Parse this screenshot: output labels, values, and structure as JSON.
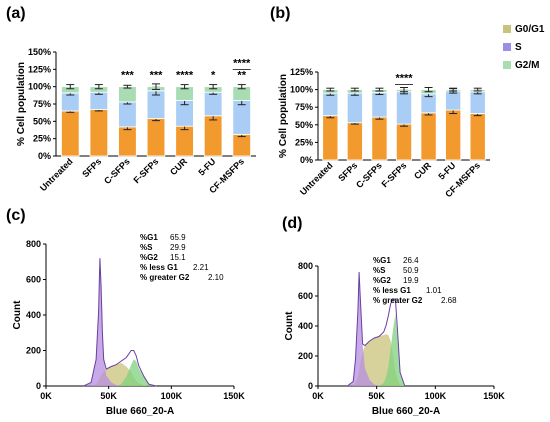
{
  "colors": {
    "g0g1": "#f39a2e",
    "s": "#a9cdf5",
    "g2m": "#a9dcb3",
    "bar_frame": "#ffffff",
    "hist_g1": "#b58ee0",
    "hist_s": "#c9c27a",
    "hist_g2": "#7fd17f",
    "legend_g0g1": "#c9c27a",
    "legend_s": "#9b8ee6",
    "legend_g2m": "#a9dcb3"
  },
  "legend": [
    "G0/G1",
    "S",
    "G2/M"
  ],
  "chart_data": [
    {
      "panel": "(a)",
      "type": "bar",
      "stacked": true,
      "categories": [
        "Untreated",
        "SFPs",
        "C-SFPs",
        "F-SFPs",
        "CUR",
        "5-FU",
        "CF-MSFPs"
      ],
      "ylabel": "% Cell population",
      "xlabel": "",
      "ylim": [
        0,
        150
      ],
      "yticks": [
        "0%",
        "25%",
        "50%",
        "75%",
        "100%",
        "125%",
        "150%"
      ],
      "series": [
        {
          "name": "G0/G1",
          "values": [
            65,
            67,
            42,
            54,
            43,
            58,
            31
          ],
          "errors": [
            2,
            2,
            4,
            3,
            5,
            6,
            3
          ]
        },
        {
          "name": "S",
          "values": [
            26,
            25,
            36,
            40,
            37,
            34,
            49
          ],
          "errors": [
            3,
            3,
            3,
            6,
            6,
            3,
            6
          ]
        },
        {
          "name": "G2/M",
          "values": [
            9,
            8,
            22,
            6,
            20,
            8,
            20
          ],
          "errors": [
            3,
            3,
            2,
            4,
            3,
            3,
            3
          ]
        }
      ],
      "significance": [
        {
          "category": "C-SFPs",
          "label": "***"
        },
        {
          "category": "F-SFPs",
          "label": "***"
        },
        {
          "category": "CUR",
          "label": "****"
        },
        {
          "category": "5-FU",
          "label": "*"
        },
        {
          "category": "CF-MSFPs",
          "label": "****"
        },
        {
          "category": "CF-MSFPs",
          "label": "**"
        }
      ]
    },
    {
      "panel": "(b)",
      "type": "bar",
      "stacked": true,
      "categories": [
        "Untreated",
        "SFPs",
        "C-SFPs",
        "F-SFPs",
        "CUR",
        "5-FU",
        "CF-MSFPs"
      ],
      "ylabel": "% Cell population",
      "xlabel": "",
      "ylim": [
        0,
        125
      ],
      "yticks": [
        "0%",
        "25%",
        "50%",
        "75%",
        "100%",
        "125%"
      ],
      "series": [
        {
          "name": "G0/G1",
          "values": [
            63,
            53,
            61,
            51,
            67,
            71,
            66
          ],
          "errors": [
            3,
            2,
            3,
            3,
            3,
            5,
            3
          ]
        },
        {
          "name": "S",
          "values": [
            32,
            42,
            35,
            46,
            27,
            27,
            31
          ],
          "errors": [
            3,
            3,
            3,
            3,
            4,
            3,
            3
          ]
        },
        {
          "name": "G2/M",
          "values": [
            5,
            5,
            4,
            3,
            6,
            2,
            3
          ],
          "errors": [
            2,
            2,
            2,
            3,
            3,
            2,
            2
          ]
        }
      ],
      "significance": [
        {
          "category": "F-SFPs",
          "label": "****"
        }
      ]
    },
    {
      "panel": "(c)",
      "type": "area",
      "xlabel": "Blue 660_20-A",
      "ylabel": "Count",
      "xlim": [
        0,
        150000
      ],
      "ylim": [
        0,
        800
      ],
      "xticks": [
        "0K",
        "50K",
        "100K",
        "150K"
      ],
      "yticks": [
        "0",
        "200",
        "400",
        "600",
        "800"
      ],
      "stats": [
        {
          "label": "%G1",
          "value": "65.9"
        },
        {
          "label": "%S",
          "value": "29.9"
        },
        {
          "label": "%G2",
          "value": "15.1"
        },
        {
          "label": "% less G1",
          "value": "2.21"
        },
        {
          "label": "% greater G2",
          "value": "2.10"
        }
      ],
      "x": [
        30000,
        36000,
        40000,
        42000,
        43000,
        44000,
        45000,
        46000,
        48000,
        52000,
        56000,
        60000,
        64000,
        68000,
        70000,
        72000,
        74000,
        78000,
        82000,
        88000
      ],
      "g1": [
        0,
        20,
        150,
        420,
        720,
        560,
        300,
        150,
        60,
        20,
        5,
        0,
        0,
        0,
        0,
        0,
        0,
        0,
        0,
        0
      ],
      "s": [
        0,
        0,
        10,
        30,
        50,
        60,
        70,
        80,
        95,
        110,
        120,
        130,
        110,
        80,
        50,
        30,
        15,
        5,
        0,
        0
      ],
      "g2": [
        0,
        0,
        0,
        0,
        0,
        0,
        0,
        0,
        0,
        0,
        0,
        10,
        50,
        120,
        150,
        140,
        100,
        50,
        10,
        0
      ]
    },
    {
      "panel": "(d)",
      "type": "area",
      "xlabel": "Blue 660_20-A",
      "ylabel": "Count",
      "xlim": [
        0,
        150000
      ],
      "ylim": [
        0,
        800
      ],
      "xticks": [
        "0K",
        "50K",
        "100K",
        "150K"
      ],
      "yticks": [
        "0",
        "200",
        "400",
        "600",
        "800"
      ],
      "stats": [
        {
          "label": "%G1",
          "value": "26.4"
        },
        {
          "label": "%S",
          "value": "50.9"
        },
        {
          "label": "%G2",
          "value": "19.9"
        },
        {
          "label": "% less G1",
          "value": "1.01"
        },
        {
          "label": "% greater G2",
          "value": "2.68"
        }
      ],
      "x": [
        25000,
        30000,
        32000,
        34000,
        35000,
        36000,
        38000,
        40000,
        44000,
        48000,
        52000,
        56000,
        58000,
        60000,
        62000,
        64000,
        66000,
        68000,
        70000,
        74000
      ],
      "g1": [
        0,
        30,
        180,
        500,
        760,
        600,
        280,
        120,
        40,
        10,
        0,
        0,
        0,
        0,
        0,
        0,
        0,
        0,
        0,
        0
      ],
      "s": [
        0,
        0,
        20,
        60,
        100,
        150,
        220,
        270,
        300,
        320,
        330,
        340,
        345,
        340,
        300,
        200,
        100,
        40,
        10,
        0
      ],
      "g2": [
        0,
        0,
        0,
        0,
        0,
        0,
        0,
        0,
        0,
        0,
        0,
        20,
        60,
        130,
        250,
        380,
        480,
        300,
        80,
        0
      ]
    }
  ]
}
